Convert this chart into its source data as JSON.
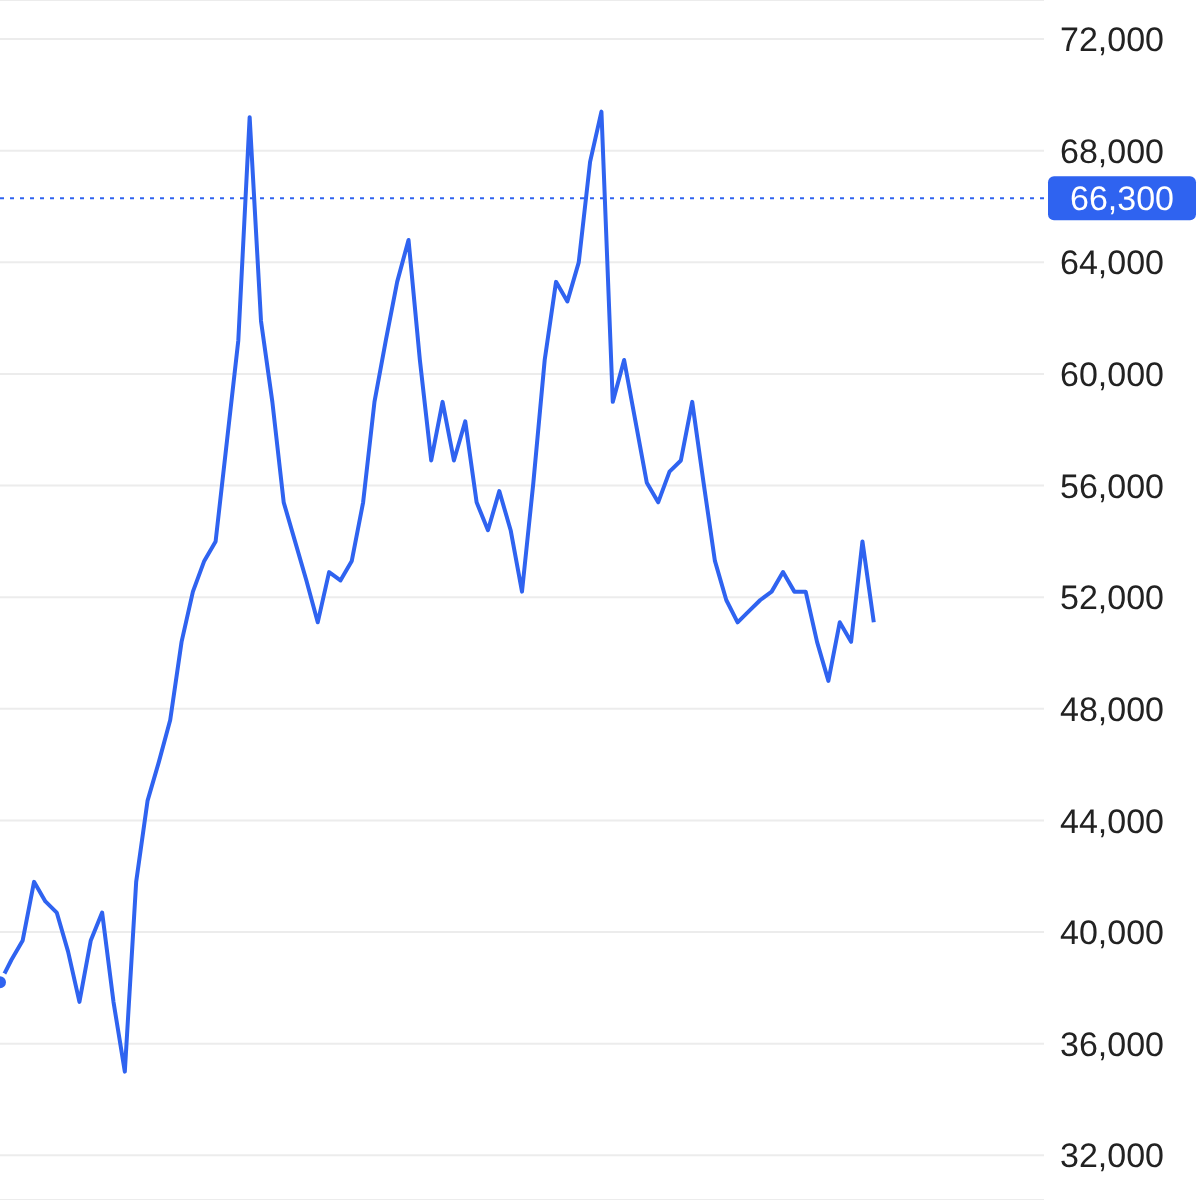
{
  "chart_data": {
    "type": "line",
    "categories": [
      null,
      null,
      null,
      null,
      null,
      null,
      null,
      null,
      null,
      null,
      null,
      null,
      null,
      null,
      null,
      null,
      null,
      null,
      null,
      null,
      null,
      null,
      null,
      null,
      null,
      null,
      null,
      null,
      null,
      null,
      null,
      null,
      null,
      null,
      null,
      null,
      null,
      null,
      null,
      null,
      null,
      null,
      null,
      null,
      null,
      null,
      null,
      null,
      null,
      null,
      null,
      null,
      null,
      null,
      null,
      null,
      null,
      null,
      null,
      null,
      null,
      null,
      null,
      null,
      null,
      null,
      null,
      null,
      null,
      null,
      null,
      null,
      null,
      null,
      null,
      null,
      null,
      null,
      null,
      null,
      null,
      null,
      null,
      null,
      null,
      null,
      null,
      null,
      null,
      null,
      null,
      null,
      null
    ],
    "series": [
      {
        "color": "#2f63f0",
        "values": [
          38200,
          39000,
          39700,
          41800,
          41100,
          40700,
          39300,
          37500,
          39700,
          40700,
          37500,
          35000,
          41800,
          44700,
          46100,
          47600,
          50400,
          52200,
          53300,
          54000,
          57600,
          61200,
          69200,
          61900,
          59000,
          55400,
          54000,
          52600,
          51100,
          52900,
          52600,
          53300,
          55400,
          59000,
          61200,
          63300,
          64800,
          60500,
          56900,
          59000,
          56900,
          58300,
          55400,
          54400,
          55800,
          54400,
          52200,
          56100,
          60500,
          63300,
          62600,
          64000,
          67600,
          69400,
          59000,
          60500,
          58300,
          56100,
          55400,
          56500,
          56900,
          59000,
          56100,
          53300,
          51900,
          51100,
          51500,
          51900,
          52200,
          52900,
          52200,
          52200,
          50400,
          49000,
          51100,
          50400,
          54000,
          51100,
          null,
          null,
          null,
          null,
          null,
          null,
          null,
          null,
          null,
          null,
          null,
          null,
          null,
          null,
          null
        ]
      }
    ],
    "ylim": [
      30400,
      73400
    ],
    "yticks": [
      {
        "value": 32000,
        "label": "32,000"
      },
      {
        "value": 36000,
        "label": "36,000"
      },
      {
        "value": 40000,
        "label": "40,000"
      },
      {
        "value": 44000,
        "label": "44,000"
      },
      {
        "value": 48000,
        "label": "48,000"
      },
      {
        "value": 52000,
        "label": "52,000"
      },
      {
        "value": 56000,
        "label": "56,000"
      },
      {
        "value": 60000,
        "label": "60,000"
      },
      {
        "value": 64000,
        "label": "64,000"
      },
      {
        "value": 68000,
        "label": "68,000"
      },
      {
        "value": 72000,
        "label": "72,000"
      }
    ],
    "ref_lines": [
      {
        "axis": "y",
        "value": 66300,
        "label": "66,300",
        "color": "#2f63f0",
        "line_style": "dotted"
      }
    ],
    "grid": "y",
    "tick_labels": "y",
    "marker": "none",
    "line_style": "solid"
  }
}
